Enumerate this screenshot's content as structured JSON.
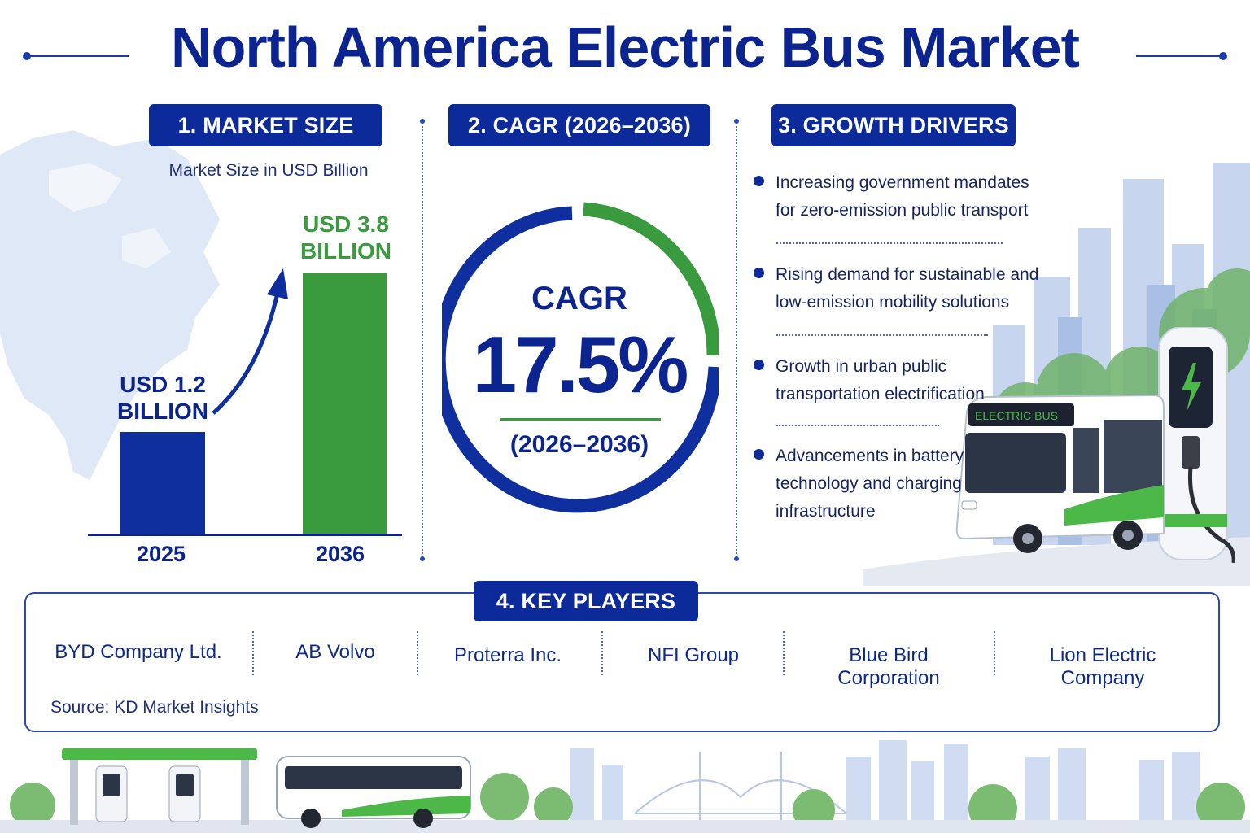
{
  "title": "North America Electric Bus Market",
  "colors": {
    "navy": "#0b2490",
    "pill": "#0d2a9a",
    "bar_2025": "#0f2f9e",
    "bar_2036": "#3a9a3e",
    "green": "#3a9a3e",
    "light_blue": "#dbe6f6"
  },
  "market_size": {
    "heading": "1. MARKET SIZE",
    "subtitle": "Market Size in USD Billion",
    "bars": [
      {
        "year": "2025",
        "label_line1": "USD 1.2",
        "label_line2": "BILLION",
        "value": 1.2
      },
      {
        "year": "2036",
        "label_line1": "USD 3.8",
        "label_line2": "BILLION",
        "value": 3.8
      }
    ]
  },
  "cagr": {
    "heading": "2. CAGR (2026–2036)",
    "label": "CAGR",
    "value": "17.5%",
    "period": "(2026–2036)"
  },
  "growth_drivers": {
    "heading": "3. GROWTH DRIVERS",
    "items": [
      {
        "line1": "Increasing government mandates",
        "line2": "for zero-emission public transport",
        "line3": ""
      },
      {
        "line1": "Rising demand for sustainable and",
        "line2": "low-emission mobility solutions",
        "line3": ""
      },
      {
        "line1": "Growth in urban public",
        "line2": "transportation electrification",
        "line3": ""
      },
      {
        "line1": "Advancements in battery",
        "line2": "technology and charging",
        "line3": "infrastructure"
      }
    ]
  },
  "illustration": {
    "bus_sign": "ELECTRIC BUS",
    "icons": [
      "north-america-map-icon",
      "city-skyline-icon",
      "electric-bus-icon",
      "charging-station-icon",
      "bridge-icon",
      "tree-icon"
    ]
  },
  "key_players": {
    "heading": "4. KEY PLAYERS",
    "players": [
      "BYD Company Ltd.",
      "AB Volvo",
      "Proterra Inc.",
      "NFI Group",
      "Blue Bird Corporation",
      "Lion Electric Company"
    ],
    "source": "Source: KD Market Insights"
  }
}
